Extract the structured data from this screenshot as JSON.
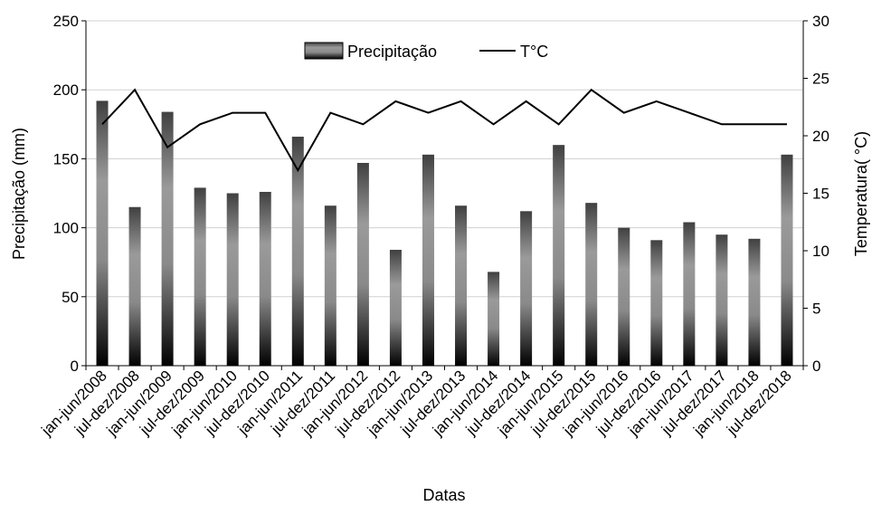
{
  "chart_data": {
    "type": "bar+line",
    "categories": [
      "jan-jun/2008",
      "jul-dez/2008",
      "jan-jun/2009",
      "jul-dez/2009",
      "jan-jun/2010",
      "jul-dez/2010",
      "jan-jun/2011",
      "jul-dez/2011",
      "jan-jun/2012",
      "jul-dez/2012",
      "jan-jun/2013",
      "jul-dez/2013",
      "jan-jun/2014",
      "jul-dez/2014",
      "jan-jun/2015",
      "jul-dez/2015",
      "jan-jun/2016",
      "jul-dez/2016",
      "jan-jun/2017",
      "jul-dez/2017",
      "jan-jun/2018",
      "jul-dez/2018"
    ],
    "series": [
      {
        "name": "Precipitação",
        "type": "bar",
        "axis": "left",
        "values": [
          192,
          115,
          184,
          129,
          125,
          126,
          166,
          116,
          147,
          84,
          153,
          116,
          68,
          112,
          160,
          118,
          100,
          91,
          104,
          95,
          92,
          153
        ]
      },
      {
        "name": "T°C",
        "type": "line",
        "axis": "right",
        "values": [
          21,
          24,
          19,
          21,
          22,
          22,
          17,
          22,
          21,
          23,
          22,
          23,
          21,
          23,
          21,
          24,
          22,
          23,
          22,
          21,
          21,
          21
        ]
      }
    ],
    "xlabel": "Datas",
    "ylabel": "Precipitação (mm)",
    "y2label": "Temperatura( °C)",
    "ylim": [
      0,
      250
    ],
    "y2lim": [
      0,
      30
    ],
    "yticks": [
      "0",
      "50",
      "100",
      "150",
      "200",
      "250"
    ],
    "y2ticks": [
      "0",
      "5",
      "10",
      "15",
      "20",
      "25",
      "30"
    ],
    "grid": true,
    "legend": "top-center"
  }
}
